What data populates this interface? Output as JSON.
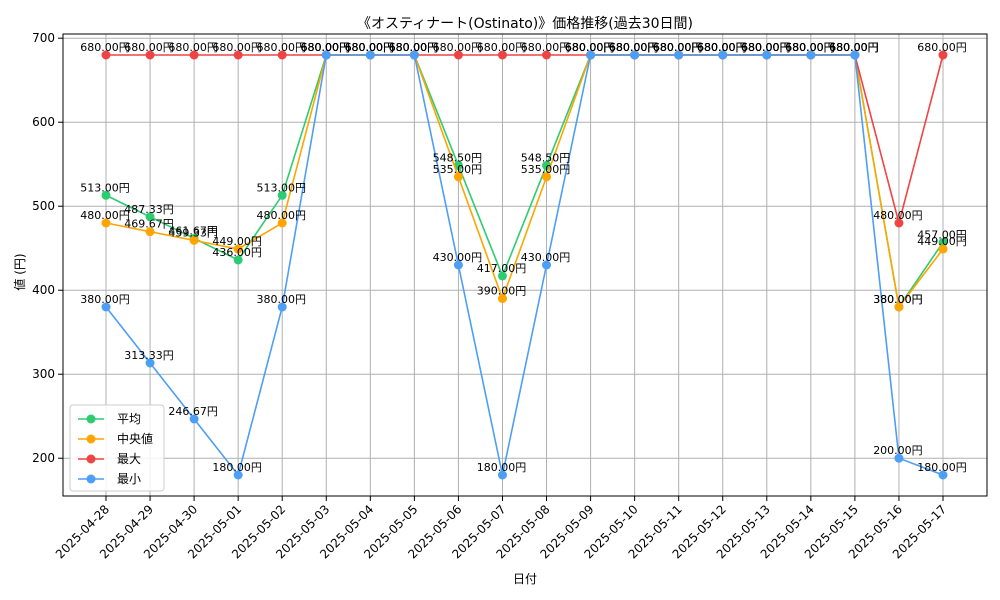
{
  "chart_data": {
    "type": "line",
    "title": "《オスティナート(Ostinato)》価格推移(過去30日間)",
    "xlabel": "日付",
    "ylabel": "値 (円)",
    "ylim": [
      155,
      705
    ],
    "yticks": [
      200,
      300,
      400,
      500,
      600,
      700
    ],
    "grid": true,
    "legend_position": "lower-left",
    "value_suffix": "円",
    "categories": [
      "2025-04-28",
      "2025-04-29",
      "2025-04-30",
      "2025-05-01",
      "2025-05-02",
      "2025-05-03",
      "2025-05-04",
      "2025-05-05",
      "2025-05-06",
      "2025-05-07",
      "2025-05-08",
      "2025-05-09",
      "2025-05-10",
      "2025-05-11",
      "2025-05-12",
      "2025-05-13",
      "2025-05-14",
      "2025-05-15",
      "2025-05-16",
      "2025-05-17"
    ],
    "series": [
      {
        "name": "平均",
        "color": "#2ecc71",
        "values": [
          513.0,
          487.33,
          461.67,
          436.0,
          513.0,
          680.0,
          680.0,
          680.0,
          548.5,
          417.0,
          548.5,
          680.0,
          680.0,
          680.0,
          680.0,
          680.0,
          680.0,
          680.0,
          380.0,
          457.0
        ],
        "labels": [
          "513.00円",
          "487.33円",
          "461.67円",
          "436.00円",
          "513.00円",
          "680.00円",
          "680.00円",
          "680.00円",
          "548.50円",
          "417.00円",
          "548.50円",
          "680.00円",
          "680.00円",
          "680.00円",
          "680.00円",
          "680.00円",
          "680.00円",
          "680.00円",
          "380.00円",
          "457.00円"
        ]
      },
      {
        "name": "中央値",
        "color": "#ffa500",
        "values": [
          480.0,
          469.67,
          459.33,
          449.0,
          480.0,
          680.0,
          680.0,
          680.0,
          535.0,
          390.0,
          535.0,
          680.0,
          680.0,
          680.0,
          680.0,
          680.0,
          680.0,
          680.0,
          380.0,
          449.0
        ],
        "labels": [
          "480.00円",
          "469.67円",
          "459.33円",
          "449.00円",
          "480.00円",
          "680.00円",
          "680.00円",
          "680.00円",
          "535.00円",
          "390.00円",
          "535.00円",
          "680.00円",
          "680.00円",
          "680.00円",
          "680.00円",
          "680.00円",
          "680.00円",
          "680.00円",
          "380.00円",
          "449.00円"
        ]
      },
      {
        "name": "最大",
        "color": "#ef4444",
        "values": [
          680.0,
          680.0,
          680.0,
          680.0,
          680.0,
          680.0,
          680.0,
          680.0,
          680.0,
          680.0,
          680.0,
          680.0,
          680.0,
          680.0,
          680.0,
          680.0,
          680.0,
          680.0,
          480.0,
          680.0
        ],
        "labels": [
          "680.00円",
          "680.00円",
          "680.00円",
          "680.00円",
          "680.00円",
          "680.00円",
          "680.00円",
          "680.00円",
          "680.00円",
          "680.00円",
          "680.00円",
          "680.00円",
          "680.00円",
          "680.00円",
          "680.00円",
          "680.00円",
          "680.00円",
          "680.00円",
          "480.00円",
          "680.00円"
        ]
      },
      {
        "name": "最小",
        "color": "#4d9ef7",
        "values": [
          380.0,
          313.33,
          246.67,
          180.0,
          380.0,
          680.0,
          680.0,
          680.0,
          430.0,
          180.0,
          430.0,
          680.0,
          680.0,
          680.0,
          680.0,
          680.0,
          680.0,
          680.0,
          200.0,
          180.0
        ],
        "labels": [
          "380.00円",
          "313.33円",
          "246.67円",
          "180.00円",
          "380.00円",
          "680.00円",
          "680.00円",
          "680.00円",
          "430.00円",
          "180.00円",
          "430.00円",
          "680.00円",
          "680.00円",
          "680.00円",
          "680.00円",
          "680.00円",
          "680.00円",
          "680.00円",
          "200.00円",
          "180.00円"
        ]
      }
    ]
  }
}
